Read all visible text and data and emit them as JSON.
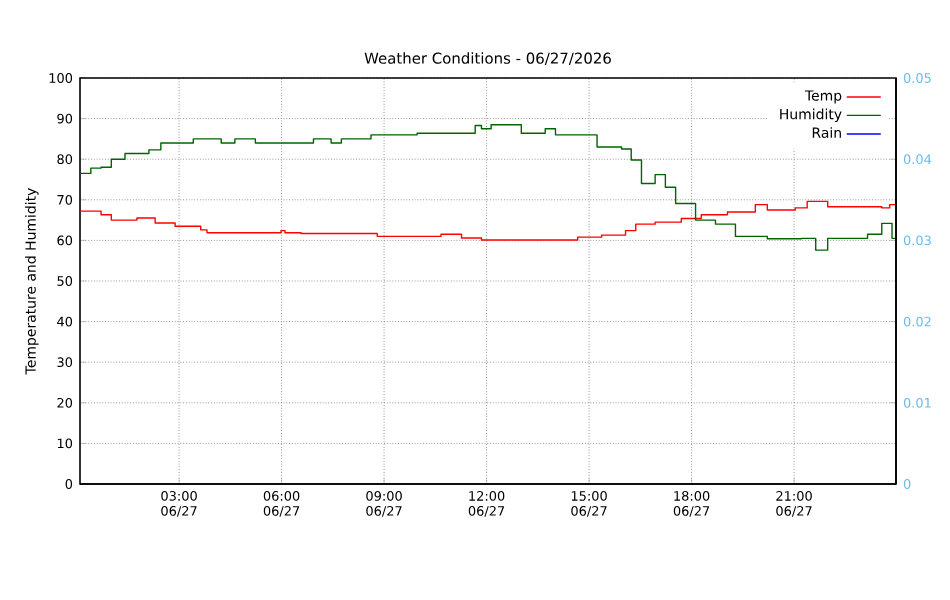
{
  "chart_data": {
    "type": "step",
    "title": "Weather Conditions - 06/27/2026",
    "ylabel": "Temperature and Humidity",
    "xlim": [
      "2026-06-27T00:06",
      "2026-06-27T23:59"
    ],
    "xticks": [
      {
        "value": "2026-06-27T03:00",
        "label": "03:00 06/27"
      },
      {
        "value": "2026-06-27T06:00",
        "label": "06:00 06/27"
      },
      {
        "value": "2026-06-27T09:00",
        "label": "09:00 06/27"
      },
      {
        "value": "2026-06-27T12:00",
        "label": "12:00 06/27"
      },
      {
        "value": "2026-06-27T15:00",
        "label": "15:00 06/27"
      },
      {
        "value": "2026-06-27T18:00",
        "label": "18:00 06/27"
      },
      {
        "value": "2026-06-27T21:00",
        "label": "21:00 06/27"
      }
    ],
    "ylim": [
      0,
      100
    ],
    "yticks": [
      0,
      10,
      20,
      30,
      40,
      50,
      60,
      70,
      80,
      90,
      100
    ],
    "y2lim": [
      0,
      0.05
    ],
    "y2ticks": [
      0,
      0.01,
      0.02,
      0.03,
      0.04,
      0.05
    ],
    "grid": true,
    "legend": "top right",
    "series": [
      {
        "name": "Temp",
        "color": "#ff0000",
        "x": [
          "2026-06-27T00:06",
          "2026-06-27T00:43",
          "2026-06-27T01:01",
          "2026-06-27T01:46",
          "2026-06-27T02:18",
          "2026-06-27T02:53",
          "2026-06-27T03:38",
          "2026-06-27T03:49",
          "2026-06-27T05:59",
          "2026-06-27T06:06",
          "2026-06-27T06:34",
          "2026-06-27T08:48",
          "2026-06-27T10:40",
          "2026-06-27T11:16",
          "2026-06-27T11:51",
          "2026-06-27T14:40",
          "2026-06-27T15:22",
          "2026-06-27T16:04",
          "2026-06-27T16:22",
          "2026-06-27T16:56",
          "2026-06-27T17:42",
          "2026-06-27T18:17",
          "2026-06-27T19:03",
          "2026-06-27T19:52",
          "2026-06-27T20:13",
          "2026-06-27T21:02",
          "2026-06-27T21:23",
          "2026-06-27T21:59",
          "2026-06-27T23:34",
          "2026-06-27T23:48",
          "2026-06-27T23:59"
        ],
        "values": [
          67.2,
          66.3,
          65,
          65.5,
          64.3,
          63.5,
          62.6,
          61.9,
          62.4,
          61.9,
          61.7,
          61,
          61.5,
          60.6,
          60.1,
          60.8,
          61.3,
          62.4,
          64,
          64.5,
          65.4,
          66.3,
          67,
          68.8,
          67.5,
          68,
          69.6,
          68.3,
          68,
          68.8,
          67.5
        ]
      },
      {
        "name": "Humidity",
        "color": "#006400",
        "x": [
          "2026-06-27T00:06",
          "2026-06-27T00:25",
          "2026-06-27T00:43",
          "2026-06-27T01:01",
          "2026-06-27T01:25",
          "2026-06-27T02:07",
          "2026-06-27T02:28",
          "2026-06-27T03:25",
          "2026-06-27T04:14",
          "2026-06-27T04:38",
          "2026-06-27T05:14",
          "2026-06-27T06:56",
          "2026-06-27T07:27",
          "2026-06-27T07:45",
          "2026-06-27T08:37",
          "2026-06-27T09:58",
          "2026-06-27T11:40",
          "2026-06-27T11:51",
          "2026-06-27T12:08",
          "2026-06-27T12:37",
          "2026-06-27T13:01",
          "2026-06-27T13:43",
          "2026-06-27T14:01",
          "2026-06-27T15:14",
          "2026-06-27T15:57",
          "2026-06-27T16:14",
          "2026-06-27T16:32",
          "2026-06-27T16:56",
          "2026-06-27T17:14",
          "2026-06-27T17:32",
          "2026-06-27T18:07",
          "2026-06-27T18:42",
          "2026-06-27T19:17",
          "2026-06-27T20:13",
          "2026-06-27T21:13",
          "2026-06-27T21:38",
          "2026-06-27T21:59",
          "2026-06-27T23:09",
          "2026-06-27T23:34",
          "2026-06-27T23:52",
          "2026-06-27T23:59"
        ],
        "values": [
          76.5,
          77.8,
          78,
          80,
          81.4,
          82.3,
          84,
          85,
          84,
          85,
          84,
          85,
          84,
          85,
          86,
          86.4,
          88.3,
          87.5,
          88.5,
          88.5,
          86.4,
          87.5,
          86,
          83,
          82.5,
          79.8,
          74,
          76.2,
          73.1,
          69.1,
          65,
          64,
          61,
          60.4,
          60.5,
          57.6,
          60.5,
          61.5,
          64.2,
          60.5,
          61
        ]
      },
      {
        "name": "Rain",
        "color": "#0000ff"
      }
    ]
  }
}
